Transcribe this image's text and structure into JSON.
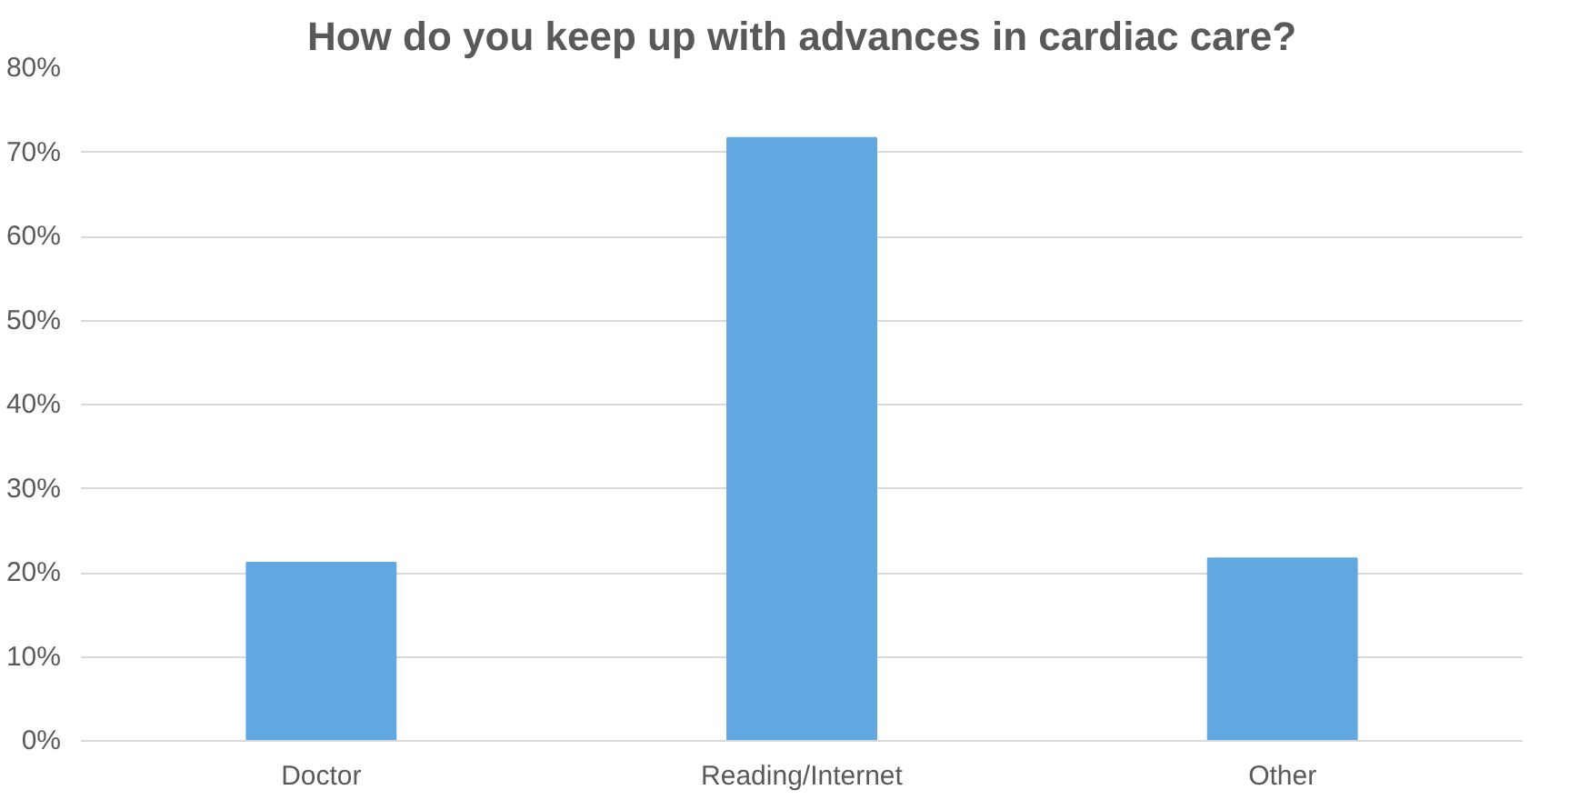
{
  "chart_data": {
    "type": "bar",
    "title": "How do you keep up with advances in cardiac care?",
    "categories": [
      "Doctor",
      "Reading/Internet",
      "Other"
    ],
    "values": [
      21.2,
      71.7,
      21.7
    ],
    "color": "#62a8e0",
    "ylim": [
      0,
      80
    ],
    "yticks": [
      {
        "value": 0,
        "label": "0%"
      },
      {
        "value": 10,
        "label": "10%"
      },
      {
        "value": 20,
        "label": "20%"
      },
      {
        "value": 30,
        "label": "30%"
      },
      {
        "value": 40,
        "label": "40%"
      },
      {
        "value": 50,
        "label": "50%"
      },
      {
        "value": 60,
        "label": "60%"
      },
      {
        "value": 70,
        "label": "70%"
      },
      {
        "value": 80,
        "label": "80%"
      }
    ],
    "grid": "y"
  }
}
